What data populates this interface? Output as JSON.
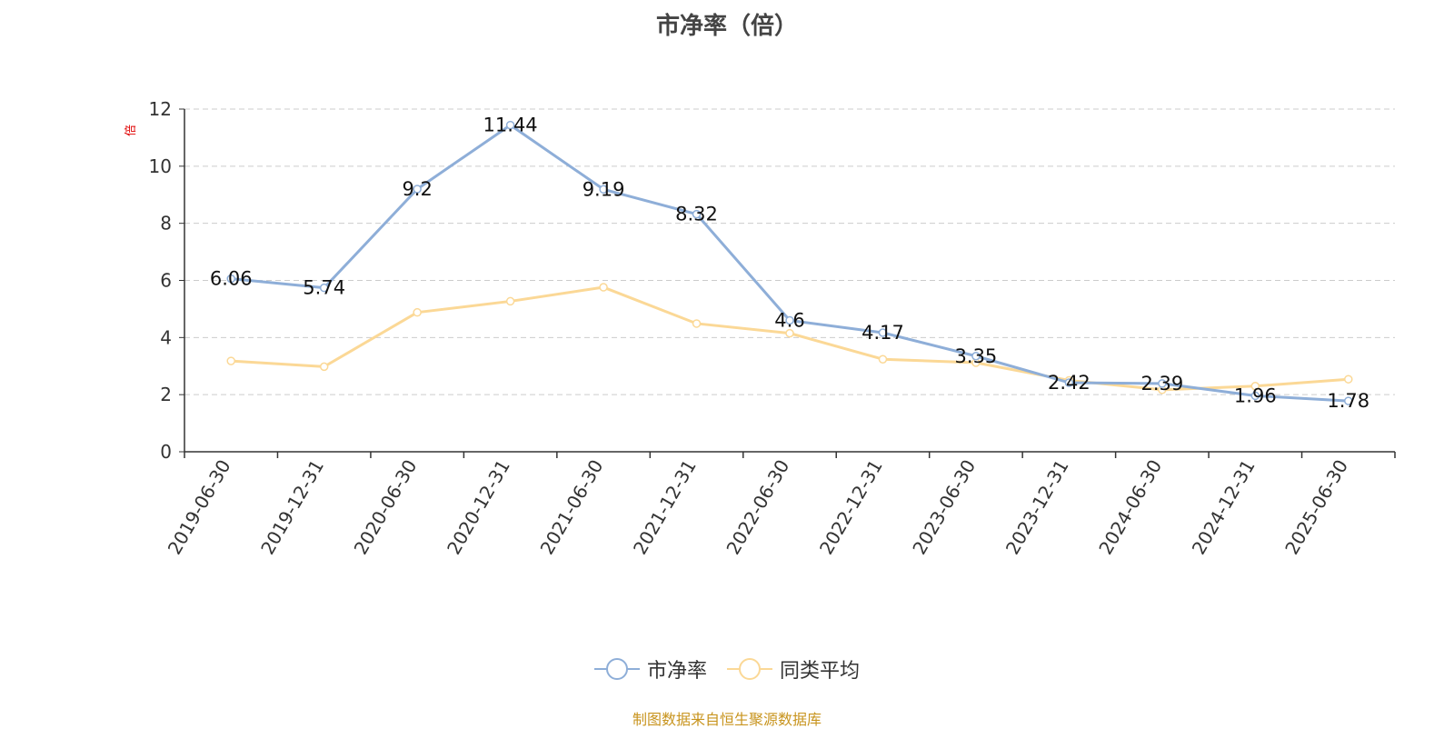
{
  "colors": {
    "series_1": "#8eaed8",
    "series_2": "#fbd896",
    "axis": "#333333",
    "grid": "#cccccc",
    "unit": "#e00000",
    "source": "#c8941e"
  },
  "chart_data": {
    "type": "line",
    "title": "市净率（倍）",
    "ylabel": "倍",
    "ylim": [
      0,
      12
    ],
    "yticks": [
      0,
      2,
      4,
      6,
      8,
      10,
      12
    ],
    "grid": true,
    "legend_position": "bottom-center",
    "categories": [
      "2019-06-30",
      "2019-12-31",
      "2020-06-30",
      "2020-12-31",
      "2021-06-30",
      "2021-12-31",
      "2022-06-30",
      "2022-12-31",
      "2023-06-30",
      "2023-12-31",
      "2024-06-30",
      "2024-12-31",
      "2025-06-30"
    ],
    "series": [
      {
        "name": "市净率",
        "values": [
          6.06,
          5.74,
          9.2,
          11.44,
          9.19,
          8.32,
          4.6,
          4.17,
          3.35,
          2.42,
          2.39,
          1.96,
          1.78
        ],
        "labels": [
          "6.06",
          "5.74",
          "9.2",
          "11.44",
          "9.19",
          "8.32",
          "4.6",
          "4.17",
          "3.35",
          "2.42",
          "2.39",
          "1.96",
          "1.78"
        ]
      },
      {
        "name": "同类平均",
        "values": [
          3.18,
          2.98,
          4.88,
          5.27,
          5.76,
          4.49,
          4.15,
          3.24,
          3.12,
          2.5,
          2.17,
          2.3,
          2.54
        ]
      }
    ]
  },
  "footer": {
    "source": "制图数据来自恒生聚源数据库"
  }
}
